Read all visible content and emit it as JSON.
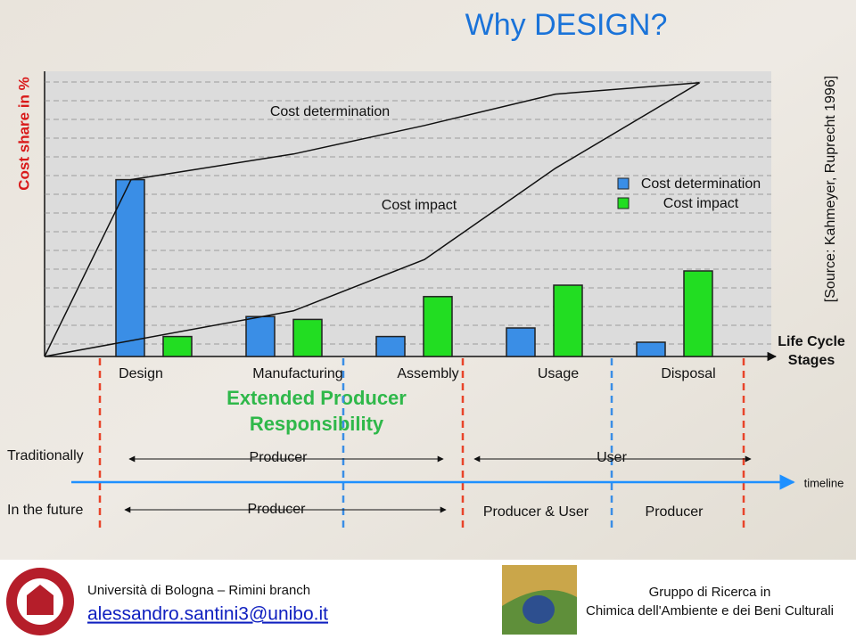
{
  "chart_data": {
    "type": "bar",
    "title": "Why DESIGN?",
    "y_label": "Cost share in %",
    "x_label": "Life Cycle Stages",
    "source": "[Source: Kahmeyer, Ruprecht 1996]",
    "categories": [
      "Design",
      "Manufacturing",
      "Assembly",
      "Usage",
      "Disposal"
    ],
    "ylim": [
      0,
      100
    ],
    "xlim": [
      0,
      5.5
    ],
    "grid": true,
    "series": [
      {
        "name": "Cost determination",
        "color": "#3a8ee6",
        "values": [
          62,
          14,
          7,
          10,
          5
        ],
        "curve": {
          "x": [
            0,
            0.66,
            1.9,
            2.9,
            3.9,
            5.0
          ],
          "values": [
            0,
            62,
            71,
            81,
            92,
            96
          ]
        }
      },
      {
        "name": "Cost impact",
        "color": "#22dd22",
        "values": [
          7,
          13,
          21,
          25,
          30
        ],
        "curve": {
          "x": [
            0,
            1.9,
            2.9,
            3.9,
            5.0
          ],
          "values": [
            0,
            16,
            34,
            66,
            96
          ]
        }
      }
    ]
  },
  "responsibility": {
    "title": "Extended Producer Responsibility",
    "timeline": "timeline",
    "rows": [
      {
        "label": "Traditionally",
        "phases": [
          "Producer",
          "User"
        ]
      },
      {
        "label": "In the future",
        "phases": [
          "Producer",
          "Producer & User",
          "Producer"
        ]
      }
    ]
  },
  "footer": {
    "university": "Università di Bologna – Rimini branch",
    "email": "alessandro.santini3@unibo.it",
    "group_line1": "Gruppo di Ricerca in",
    "group_line2": "Chimica dell'Ambiente e dei Beni Culturali"
  }
}
